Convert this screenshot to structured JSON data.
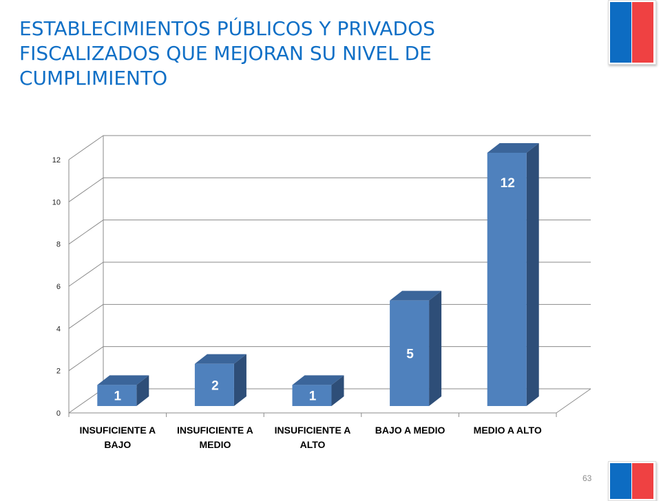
{
  "title_lines": [
    "ESTABLECIMIENTOS PÚBLICOS Y PRIVADOS",
    "FISCALIZADOS QUE MEJORAN SU NIVEL DE",
    "CUMPLIMIENTO"
  ],
  "page_number": "63",
  "colors": {
    "title": "#0F6FC6",
    "bar_front": "#4F81BD",
    "bar_side": "#2E4E78",
    "bar_top": "#3B659A",
    "flag_blue": "#0D6CC2",
    "flag_red": "#EF4142"
  },
  "chart_data": {
    "type": "bar",
    "style": "3d-column",
    "categories": [
      [
        "INSUFICIENTE A",
        "BAJO"
      ],
      [
        "INSUFICIENTE A",
        "MEDIO"
      ],
      [
        "INSUFICIENTE A",
        "ALTO"
      ],
      [
        "BAJO A MEDIO"
      ],
      [
        "MEDIO A ALTO"
      ]
    ],
    "values": [
      1,
      2,
      1,
      5,
      12
    ],
    "data_labels": [
      "1",
      "2",
      "1",
      "5",
      "12"
    ],
    "ylim": [
      0,
      12
    ],
    "yticks": [
      "0",
      "2",
      "4",
      "6",
      "8",
      "10",
      "12"
    ],
    "ytick_values": [
      0,
      2,
      4,
      6,
      8,
      10,
      12
    ],
    "grid": true,
    "legend": false
  }
}
